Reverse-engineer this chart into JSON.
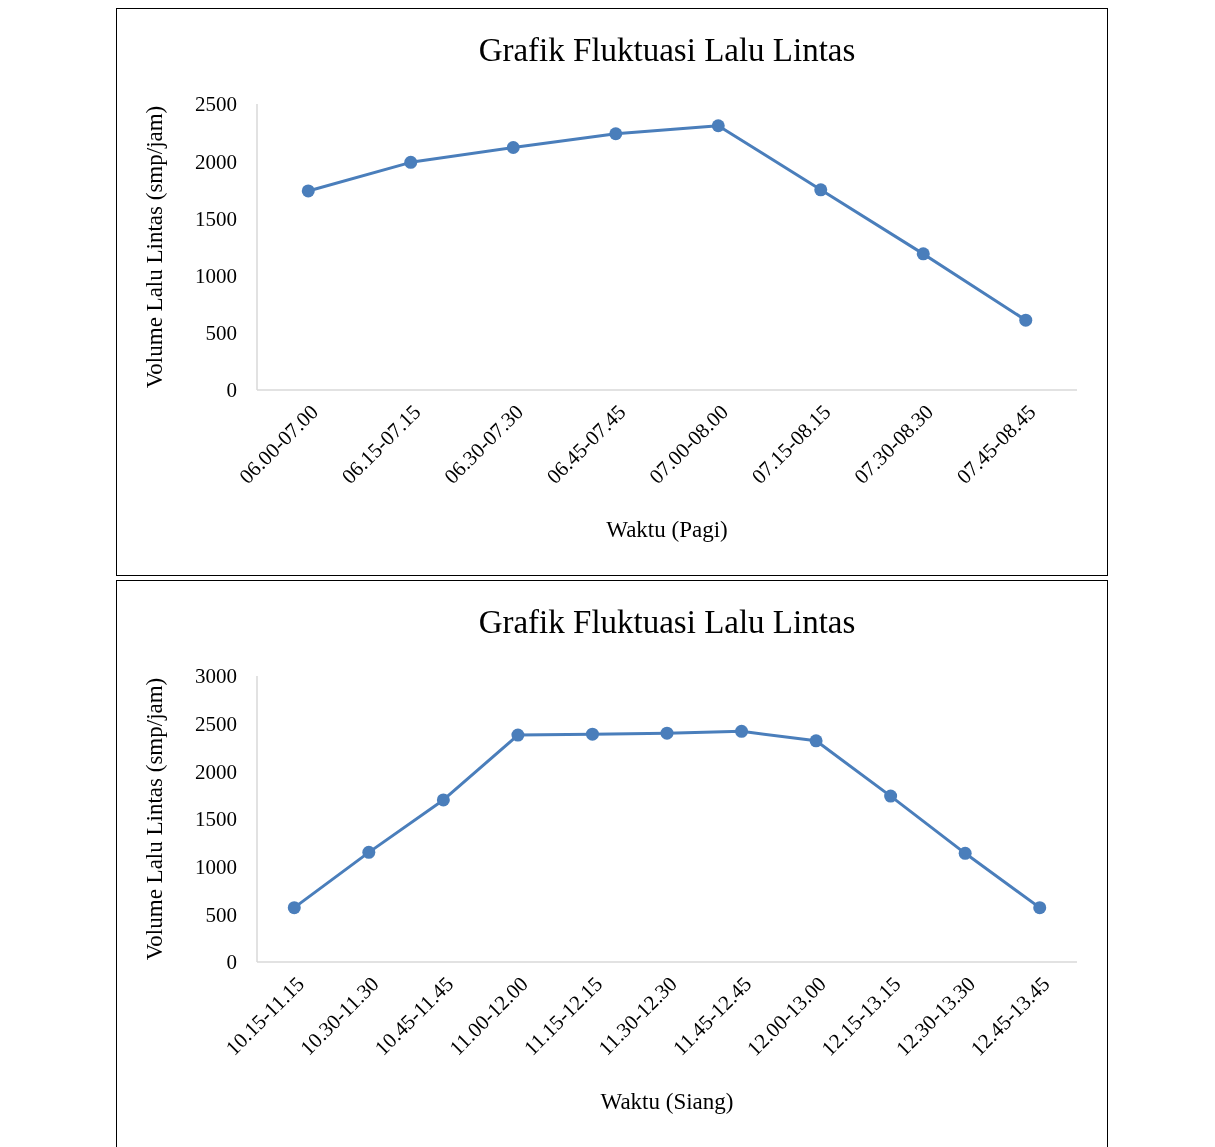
{
  "chart_data": [
    {
      "type": "line",
      "title": "Grafik Fluktuasi Lalu Lintas",
      "xlabel": "Waktu (Pagi)",
      "ylabel": "Volume Lalu Lintas (smp/jam)",
      "categories": [
        "06.00-07.00",
        "06.15-07.15",
        "06.30-07.30",
        "06.45-07.45",
        "07.00-08.00",
        "07.15-08.15",
        "07.30-08.30",
        "07.45-08.45"
      ],
      "series": [
        {
          "color": "#4a7ebb",
          "values": [
            1740,
            1990,
            2120,
            2240,
            2310,
            1750,
            1190,
            610
          ]
        }
      ],
      "ylim": [
        0,
        2500
      ],
      "yticks": [
        0,
        500,
        1000,
        1500,
        2000,
        2500
      ],
      "grid": false,
      "marker": "circle",
      "line_style": "solid"
    },
    {
      "type": "line",
      "title": "Grafik Fluktuasi Lalu Lintas",
      "xlabel": "Waktu (Siang)",
      "ylabel": "Volume Lalu Lintas (smp/jam)",
      "categories": [
        "10.15-11.15",
        "10.30-11.30",
        "10.45-11.45",
        "11.00-12.00",
        "11.15-12.15",
        "11.30-12.30",
        "11.45-12.45",
        "12.00-13.00",
        "12.15-13.15",
        "12.30-13.30",
        "12.45-13.45"
      ],
      "series": [
        {
          "color": "#4a7ebb",
          "values": [
            570,
            1150,
            1700,
            2380,
            2390,
            2400,
            2420,
            2320,
            1740,
            1140,
            570
          ]
        }
      ],
      "ylim": [
        0,
        3000
      ],
      "yticks": [
        0,
        500,
        1000,
        1500,
        2000,
        2500,
        3000
      ],
      "grid": false,
      "marker": "circle",
      "line_style": "solid"
    }
  ]
}
